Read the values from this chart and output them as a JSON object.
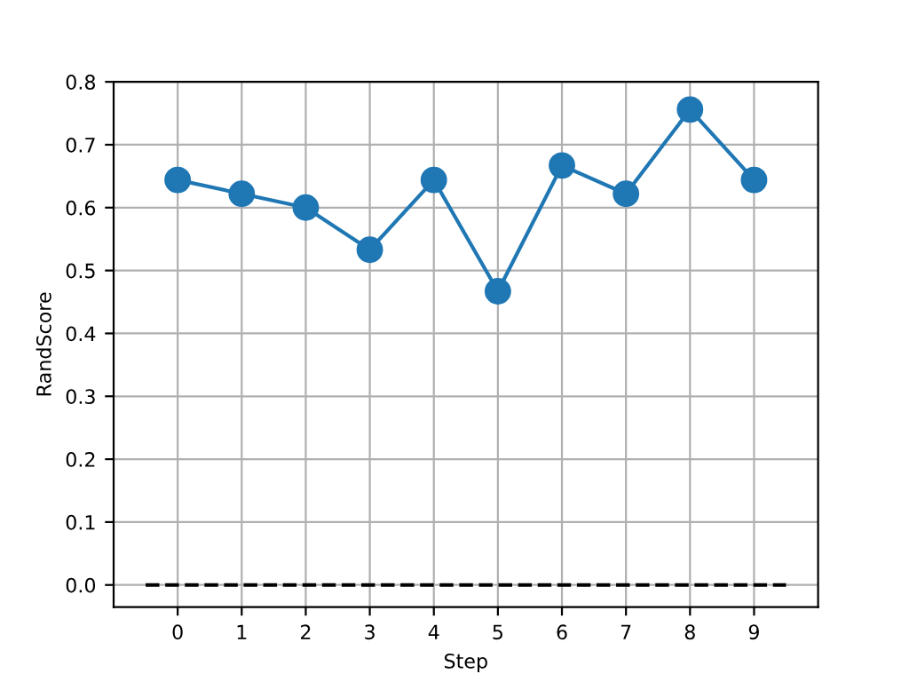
{
  "chart_data": {
    "type": "line",
    "xlabel": "Step",
    "ylabel": "RandScore",
    "x": [
      0,
      1,
      2,
      3,
      4,
      5,
      6,
      7,
      8,
      9
    ],
    "series": [
      {
        "color": "#1f77b4",
        "values": [
          0.644,
          0.622,
          0.6,
          0.533,
          0.644,
          0.467,
          0.667,
          0.622,
          0.756,
          0.644
        ],
        "marker": "circle",
        "line_style": "solid"
      },
      {
        "color": "#000000",
        "x": [
          -0.5,
          9.5
        ],
        "values": [
          0,
          0
        ],
        "marker": "none",
        "line_style": "dashed"
      }
    ],
    "xlim": [
      -1,
      10
    ],
    "ylim": [
      -0.035,
      0.8
    ],
    "xticks": [
      0,
      1,
      2,
      3,
      4,
      5,
      6,
      7,
      8,
      9
    ],
    "yticks": [
      {
        "value": 0,
        "label": "0.0"
      },
      {
        "value": 0.1,
        "label": "0.1"
      },
      {
        "value": 0.2,
        "label": "0.2"
      },
      {
        "value": 0.3,
        "label": "0.3"
      },
      {
        "value": 0.4,
        "label": "0.4"
      },
      {
        "value": 0.5,
        "label": "0.5"
      },
      {
        "value": 0.6,
        "label": "0.6"
      },
      {
        "value": 0.7,
        "label": "0.7"
      },
      {
        "value": 0.8,
        "label": "0.8"
      }
    ],
    "grid": true
  }
}
